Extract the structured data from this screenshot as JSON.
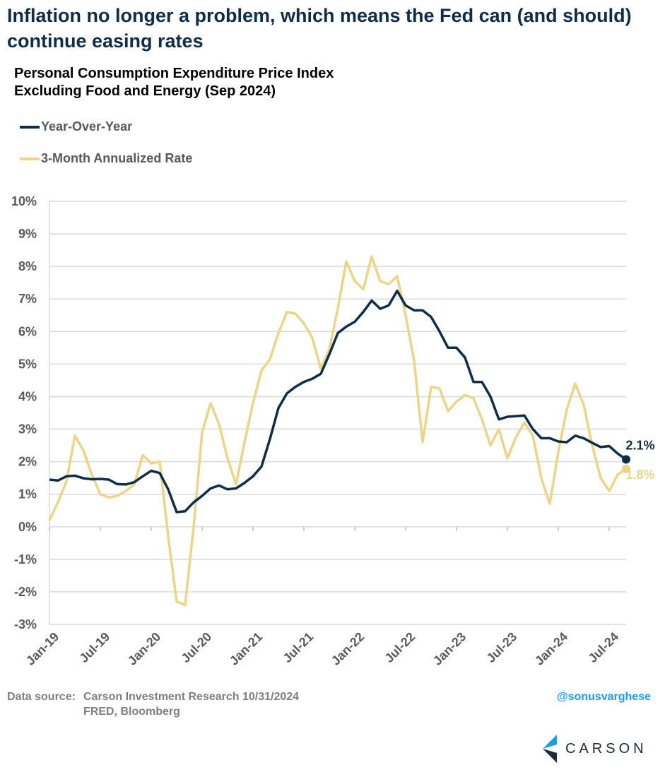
{
  "title": "Inflation no longer a problem, which means the Fed can (and should) continue easing rates",
  "footer": {
    "source_label": "Data source:",
    "source_line1": "Carson Investment Research   10/31/2024",
    "source_line2": "FRED, Bloomberg",
    "handle": "@sonusvarghese",
    "logo_text": "CARSON"
  },
  "colors": {
    "yoy": "#0f2d47",
    "three_month": "#ecd489",
    "handle": "#1e9be8"
  },
  "chart_data": {
    "type": "line",
    "title": "Personal Consumption Expenditure Price Index Excluding Food and Energy (Sep 2024)",
    "title_lines": [
      "Personal Consumption Expenditure Price Index",
      "Excluding Food and Energy (Sep 2024)"
    ],
    "xlabel": "",
    "ylabel": "",
    "x_start": "Jan-19",
    "x_end": "Sep-24",
    "x_ticks": [
      "Jan-19",
      "Jul-19",
      "Jan-20",
      "Jul-20",
      "Jan-21",
      "Jul-21",
      "Jan-22",
      "Jul-22",
      "Jan-23",
      "Jul-23",
      "Jan-24",
      "Jul-24"
    ],
    "y_ticks": [
      "10%",
      "9%",
      "8%",
      "7%",
      "6%",
      "5%",
      "4%",
      "3%",
      "2%",
      "1%",
      "0%",
      "-1%",
      "-2%",
      "-3%"
    ],
    "ylim": [
      -3,
      10
    ],
    "grid": "horizontal",
    "legend": "top-left",
    "series": [
      {
        "name": "Year-Over-Year",
        "end_label": "2.1%",
        "values": [
          1.45,
          1.42,
          1.55,
          1.57,
          1.49,
          1.46,
          1.47,
          1.45,
          1.31,
          1.3,
          1.37,
          1.55,
          1.72,
          1.65,
          1.15,
          0.45,
          0.48,
          0.75,
          0.95,
          1.18,
          1.27,
          1.15,
          1.18,
          1.35,
          1.55,
          1.85,
          2.7,
          3.65,
          4.1,
          4.3,
          4.45,
          4.55,
          4.7,
          5.3,
          5.95,
          6.15,
          6.3,
          6.6,
          6.95,
          6.7,
          6.8,
          7.25,
          6.8,
          6.65,
          6.65,
          6.45,
          6.0,
          5.5,
          5.5,
          5.2,
          4.45,
          4.45,
          4.0,
          3.3,
          3.38,
          3.4,
          3.42,
          3.0,
          2.72,
          2.72,
          2.62,
          2.6,
          2.8,
          2.72,
          2.58,
          2.45,
          2.48,
          2.25,
          2.07
        ]
      },
      {
        "name": "3-Month Annualized Rate",
        "end_label": "1.8%",
        "values": [
          0.2,
          0.75,
          1.4,
          2.8,
          2.35,
          1.6,
          1.0,
          0.9,
          0.95,
          1.1,
          1.3,
          2.2,
          1.95,
          2.0,
          -0.3,
          -2.3,
          -2.4,
          0.0,
          2.9,
          3.8,
          3.15,
          2.1,
          1.3,
          2.6,
          3.8,
          4.8,
          5.15,
          5.95,
          6.6,
          6.55,
          6.25,
          5.8,
          4.85,
          5.45,
          6.7,
          8.15,
          7.55,
          7.3,
          8.3,
          7.55,
          7.45,
          7.7,
          6.5,
          5.1,
          2.6,
          4.3,
          4.25,
          3.55,
          3.85,
          4.05,
          3.95,
          3.3,
          2.5,
          3.0,
          2.1,
          2.75,
          3.2,
          2.8,
          1.5,
          0.7,
          2.3,
          3.6,
          4.4,
          3.75,
          2.5,
          1.5,
          1.1,
          1.6,
          1.78
        ]
      }
    ]
  }
}
